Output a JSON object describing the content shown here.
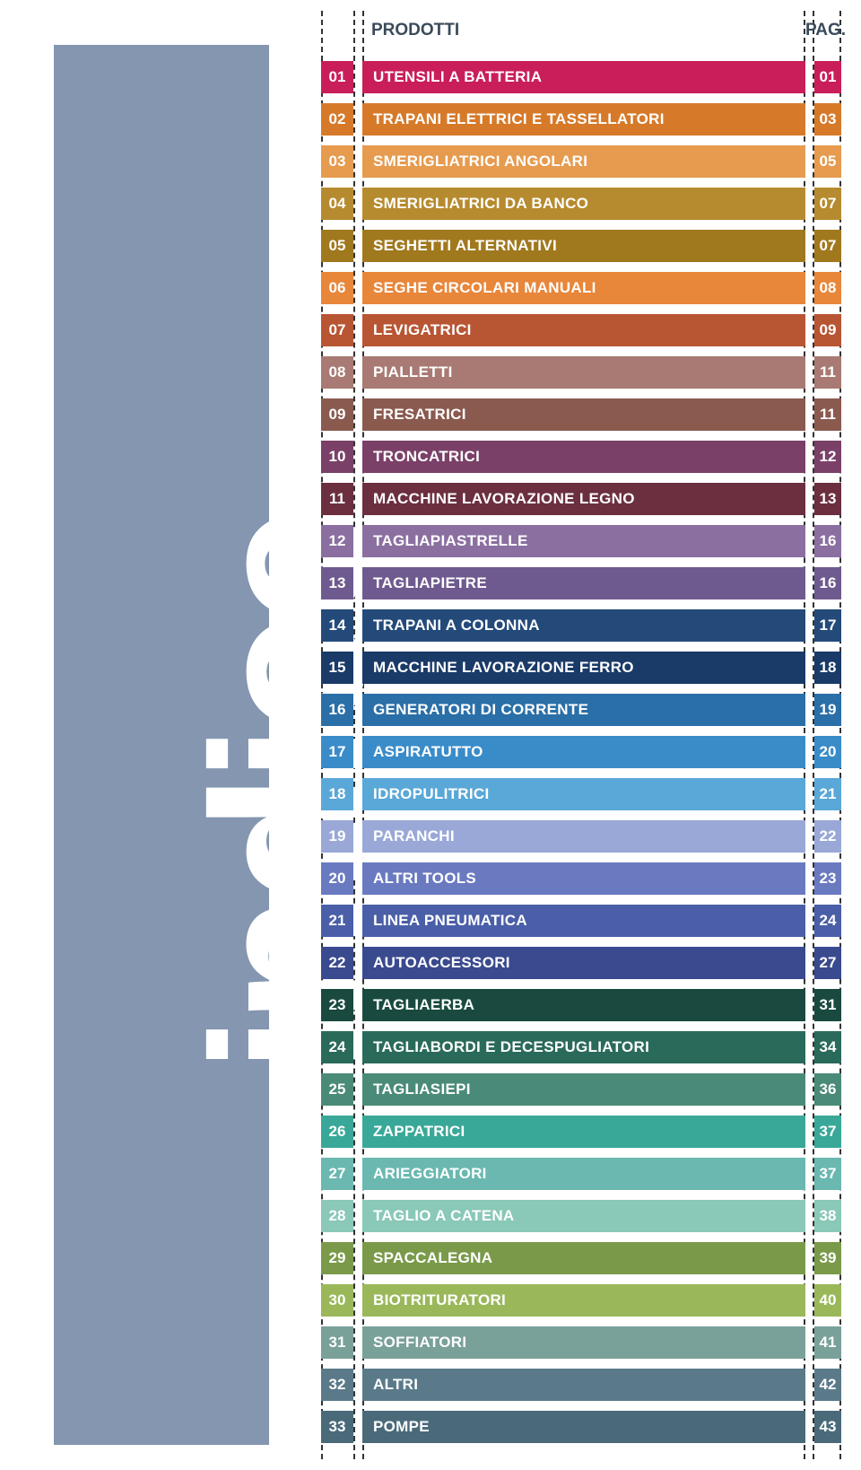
{
  "sidebar_label": "indice",
  "header": {
    "prodotti": "PRODOTTI",
    "pag": "PAG."
  },
  "rows": [
    {
      "num": "01",
      "name": "UTENSILI A BATTERIA",
      "pag": "01",
      "color": "#c91e5a"
    },
    {
      "num": "02",
      "name": "TRAPANI ELETTRICI E  TASSELLATORI",
      "pag": "03",
      "color": "#d67a2a"
    },
    {
      "num": "03",
      "name": "SMERIGLIATRICI ANGOLARI",
      "pag": "05",
      "color": "#e69b4f"
    },
    {
      "num": "04",
      "name": "SMERIGLIATRICI DA BANCO",
      "pag": "07",
      "color": "#b68b2f"
    },
    {
      "num": "05",
      "name": "SEGHETTI ALTERNATIVI",
      "pag": "07",
      "color": "#a0781e"
    },
    {
      "num": "06",
      "name": "SEGHE CIRCOLARI MANUALI",
      "pag": "08",
      "color": "#e8863a"
    },
    {
      "num": "07",
      "name": "LEVIGATRICI",
      "pag": "09",
      "color": "#b85533"
    },
    {
      "num": "08",
      "name": "PIALLETTI",
      "pag": "11",
      "color": "#a87a73"
    },
    {
      "num": "09",
      "name": "FRESATRICI",
      "pag": "11",
      "color": "#8a5a4f"
    },
    {
      "num": "10",
      "name": "TRONCATRICI",
      "pag": "12",
      "color": "#7a4068"
    },
    {
      "num": "11",
      "name": "MACCHINE LAVORAZIONE LEGNO",
      "pag": "13",
      "color": "#6b2f3f"
    },
    {
      "num": "12",
      "name": "TAGLIAPIASTRELLE",
      "pag": "16",
      "color": "#8a6fa0"
    },
    {
      "num": "13",
      "name": "TAGLIAPIETRE",
      "pag": "16",
      "color": "#6f5a8f"
    },
    {
      "num": "14",
      "name": "TRAPANI A COLONNA",
      "pag": "17",
      "color": "#244a7a"
    },
    {
      "num": "15",
      "name": "MACCHINE LAVORAZIONE FERRO",
      "pag": "18",
      "color": "#1a3a68"
    },
    {
      "num": "16",
      "name": "GENERATORI DI CORRENTE",
      "pag": "19",
      "color": "#2a6fa8"
    },
    {
      "num": "17",
      "name": "ASPIRATUTTO",
      "pag": "20",
      "color": "#3a8cc9"
    },
    {
      "num": "18",
      "name": "IDROPULITRICI",
      "pag": "21",
      "color": "#5aa8d8"
    },
    {
      "num": "19",
      "name": "PARANCHI",
      "pag": "22",
      "color": "#9aa8d8"
    },
    {
      "num": "20",
      "name": "ALTRI TOOLS",
      "pag": "23",
      "color": "#6a7ac0"
    },
    {
      "num": "21",
      "name": "LINEA PNEUMATICA",
      "pag": "24",
      "color": "#4a5fa8"
    },
    {
      "num": "22",
      "name": "AUTOACCESSORI",
      "pag": "27",
      "color": "#3a4a8f"
    },
    {
      "num": "23",
      "name": "TAGLIAERBA",
      "pag": "31",
      "color": "#1a4a3f"
    },
    {
      "num": "24",
      "name": "TAGLIABORDI E DECESPUGLIATORI",
      "pag": "34",
      "color": "#2a6a5a"
    },
    {
      "num": "25",
      "name": "TAGLIASIEPI",
      "pag": "36",
      "color": "#4a8a78"
    },
    {
      "num": "26",
      "name": "ZAPPATRICI",
      "pag": "37",
      "color": "#3aa898"
    },
    {
      "num": "27",
      "name": "ARIEGGIATORI",
      "pag": "37",
      "color": "#6ab8b0"
    },
    {
      "num": "28",
      "name": "TAGLIO A CATENA",
      "pag": "38",
      "color": "#8ac8b8"
    },
    {
      "num": "29",
      "name": "SPACCALEGNA",
      "pag": "39",
      "color": "#7a9a4a"
    },
    {
      "num": "30",
      "name": "BIOTRITURATORI",
      "pag": "40",
      "color": "#9ab85a"
    },
    {
      "num": "31",
      "name": "SOFFIATORI",
      "pag": "41",
      "color": "#7aa09a"
    },
    {
      "num": "32",
      "name": "ALTRI",
      "pag": "42",
      "color": "#5a7a8a"
    },
    {
      "num": "33",
      "name": "POMPE",
      "pag": "43",
      "color": "#4a6a7a"
    }
  ]
}
